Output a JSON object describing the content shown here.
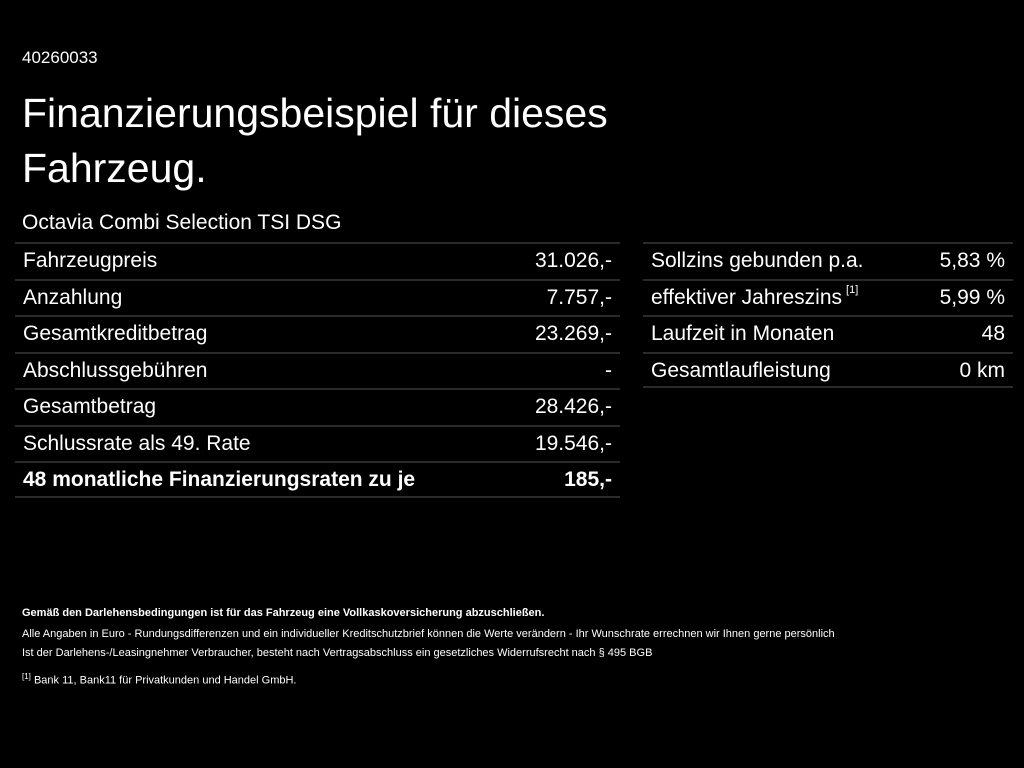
{
  "header": {
    "id": "40260033",
    "title": "Finanzierungsbeispiel für dieses Fahrzeug.",
    "subtitle": "Octavia Combi Selection TSI DSG"
  },
  "left_table": {
    "rows": [
      [
        "Fahrzeugpreis",
        "31.026,-"
      ],
      [
        "Anzahlung",
        "7.757,-"
      ],
      [
        "Gesamtkreditbetrag",
        "23.269,-"
      ],
      [
        "Abschlussgebühren",
        "-"
      ],
      [
        "Gesamtbetrag",
        "28.426,-"
      ],
      [
        "Schlussrate als 49. Rate",
        "19.546,-"
      ],
      [
        "48 monatliche Finanzierungsraten zu je",
        "185,-"
      ]
    ]
  },
  "right_table": {
    "rows": [
      {
        "label": "Sollzins gebunden p.a.",
        "value": "5,83 %"
      },
      {
        "label": "effektiver Jahreszins",
        "note": "[1]",
        "value": "5,99 %"
      },
      {
        "label": "Laufzeit in Monaten",
        "value": "48"
      },
      {
        "label": "Gesamtlaufleistung",
        "value": "0 km"
      }
    ]
  },
  "footer": {
    "bold_note": "Gemäß den Darlehensbedingungen ist für das Fahrzeug eine Vollkaskoversicherung abzuschließen.",
    "lines": [
      "Alle Angaben in Euro - Rundungsdifferenzen und ein individueller Kreditschutzbrief können die Werte verändern - Ihr Wunschrate errechnen wir Ihnen gerne persönlich",
      "Ist der Darlehens-/Leasingnehmer Verbraucher, besteht nach Vertragsabschluss ein gesetzliches Widerrufsrecht nach § 495 BGB"
    ],
    "footnote_mark": "[1]",
    "footnote": "Bank 11, Bank11 für Privatkunden und Handel GmbH."
  }
}
